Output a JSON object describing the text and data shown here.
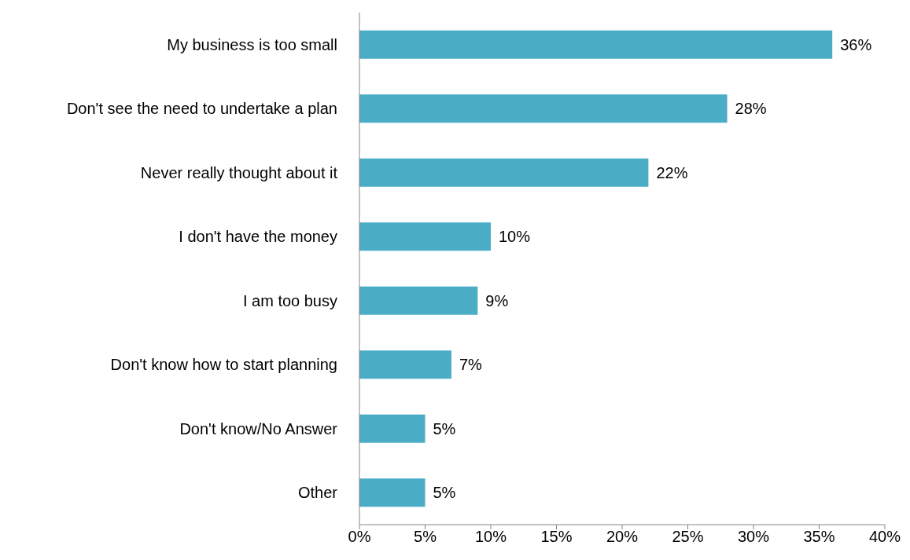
{
  "chart_data": {
    "type": "bar",
    "orientation": "horizontal",
    "categories": [
      "My business is too small",
      "Don't see the need to undertake a plan",
      "Never really thought about it",
      "I don't have the money",
      "I am too busy",
      "Don't know how to start planning",
      "Don't know/No Answer",
      "Other"
    ],
    "values": [
      36,
      28,
      22,
      10,
      9,
      7,
      5,
      5
    ],
    "value_labels": [
      "36%",
      "28%",
      "22%",
      "10%",
      "9%",
      "7%",
      "5%",
      "5%"
    ],
    "color": "#4bacc6",
    "xlim": [
      0,
      40
    ],
    "xticks": [
      {
        "value": 0,
        "label": "0%"
      },
      {
        "value": 5,
        "label": "5%"
      },
      {
        "value": 10,
        "label": "10%"
      },
      {
        "value": 15,
        "label": "15%"
      },
      {
        "value": 20,
        "label": "20%"
      },
      {
        "value": 25,
        "label": "25%"
      },
      {
        "value": 30,
        "label": "30%"
      },
      {
        "value": 35,
        "label": "35%"
      },
      {
        "value": 40,
        "label": "40%"
      }
    ],
    "grid": false,
    "legend": false
  }
}
